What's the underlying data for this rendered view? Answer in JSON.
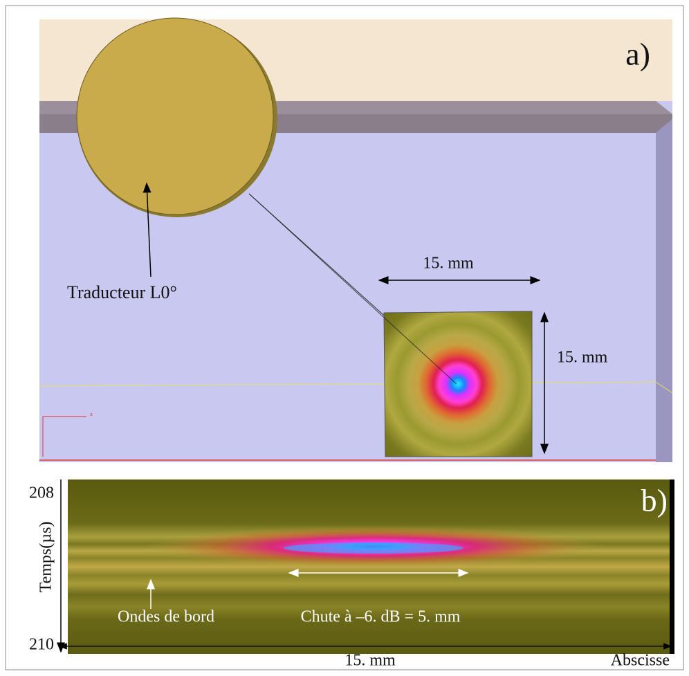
{
  "panel_a": {
    "label": "a)",
    "transducer_label": "Traducteur L0°",
    "width_label": "15. mm",
    "height_label": "15. mm",
    "axis_label": "x"
  },
  "panel_b": {
    "label": "b)",
    "time_start": 208,
    "time_end": 210,
    "time_axis_label": "Temps(µs)",
    "edge_waves_label": "Ondes de bord",
    "drop_label": "Chute à –6. dB = 5. mm",
    "width_label": "15. mm",
    "abscissa_label": "Abscisse"
  }
}
